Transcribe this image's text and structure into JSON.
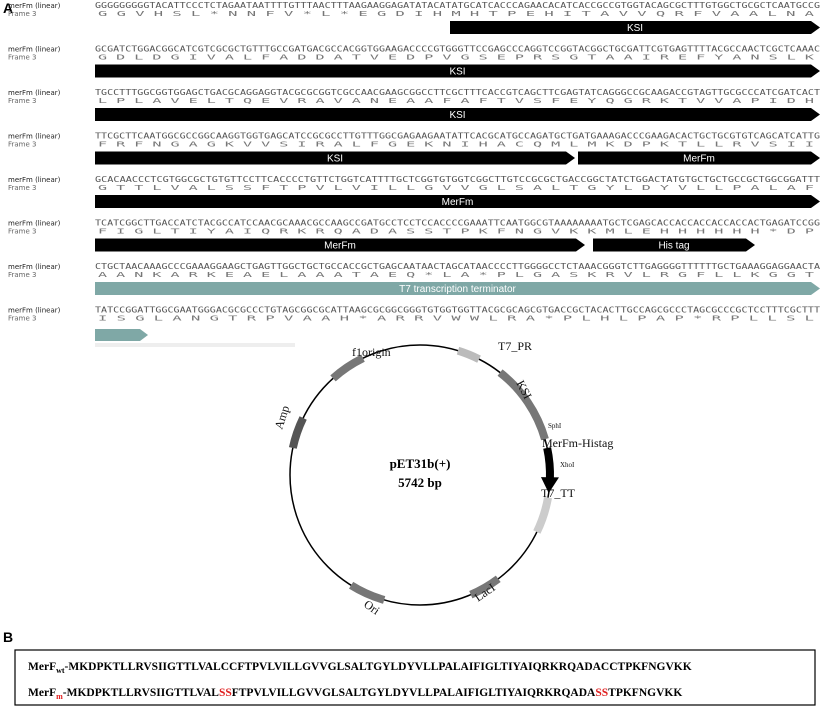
{
  "panel_a": {
    "label": "A",
    "rows": [
      {
        "name": "merFm (linear)",
        "frame": "Frame 3",
        "dna": "GGGGGGGGGTACATTCCCTCTAGAATAATTTTGTTTAACTTTAAGAAGGAGATATACATATGCATCACCCAGAACACATCACCGCCGTGGTACAGCGCTTTGTGGCTGCGCTCAATGCCG",
        "protein": "G G V H S L * N N F V * L * E G D I H M H T P E H I T A V V Q R F V A A L N A",
        "features": [
          {
            "label": "KSI",
            "color": "#000000"
          }
        ]
      },
      {
        "name": "merFm (linear)",
        "frame": "Frame 3",
        "dna": "GCGATCTGGACGGCATCGTCGCGCTGTTTGCCGATGACGCCACGGTGGAAGACCCCGTGGGTTCCGAGCCCAGGTCCGGTACGGCTGCGATTCGTGAGTTTTACGCCAACTCGCTCAAAC",
        "protein": "G D L D G I V A L F A D D A T V E D P V G S E P R S G T A A I R E F Y A N S L K",
        "features": [
          {
            "label": "KSI",
            "color": "#000000"
          }
        ]
      },
      {
        "name": "merFm (linear)",
        "frame": "Frame 3",
        "dna": "TGCCTTTGGCGGTGGAGCTGACGCAGGAGGTACGCGCGGTCGCCAACGAAGCGGCCTTCGCTTTCACCGTCAGCTTCGAGTATCAGGGCCGCAAGACCGTAGTTGCGCCCATCGATCACT",
        "protein": "L P L A V E L T Q E V R A V A N E A A F A F T V S F E Y Q G R K T V V A P I D H",
        "features": [
          {
            "label": "KSI",
            "color": "#000000"
          }
        ]
      },
      {
        "name": "merFm (linear)",
        "frame": "Frame 3",
        "dna": "TTCGCTTCAATGGCGCCGGCAAGGTGGTGAGCATCCGCGCCTTGTTTGGCGAGAAGAATATTCACGCATGCCAGATGCTGATGAAAGACCCGAAGACACTGCTGCGTGTCAGCATCATTG",
        "protein": "F R F N G A G K V V S I R A L F G E K N I H A C Q M L M K D P K T L L R V S I I",
        "features": [
          {
            "label": "KSI",
            "color": "#000000"
          },
          {
            "label": "MerFm",
            "color": "#000000"
          }
        ]
      },
      {
        "name": "merFm (linear)",
        "frame": "Frame 3",
        "dna": "GCACAACCCTCGTGGCGCTGTGTTCCTTCACCCCTGTTCTGGTCATTTTGCTCGGTGTGGTCGGCTTGTCCGCGCTGACCGGCTATCTGGACTATGTGCTGCTGCCGCTGGCGGATTT",
        "protein": "G T T L V A L S S F T P V L V I L L G V V G L S A L T G Y L D Y V L L P A L A F",
        "features": [
          {
            "label": "MerFm",
            "color": "#000000"
          }
        ]
      },
      {
        "name": "merFm (linear)",
        "frame": "Frame 3",
        "dna": "TCATCGGCTTGACCATCTACGCCATCCAACGCAAACGCCAAGCCGATGCCTCCTCCACCCCGAAATTCAATGGCGTAAAAAAAATGCTCGAGCACCACCACCACCACCACTGAGATCCGG",
        "protein": "F I G L T I Y A I Q R K R Q A D A S S T P K F N G V K K M L E H H H H H H * D P",
        "features": [
          {
            "label": "MerFm",
            "color": "#000000"
          },
          {
            "label": "His tag",
            "color": "#000000"
          }
        ]
      },
      {
        "name": "merFm (linear)",
        "frame": "Frame 3",
        "dna": "CTGCTAACAAAGCCCGAAAGGAAGCTGAGTTGGCTGCTGCCACCGCTGAGCAATAACTAGCATAACCCCTTGGGGCCTCTAAACGGGTCTTGAGGGGTTTTTTGCTGAAAGGAGGAACTA",
        "protein": "A A N K A R K E A E L A A A T A E Q * L A * P L G A S K R V L R G F L L K G G T",
        "features": [
          {
            "label": "T7 transcription terminator",
            "color": "#7fa8a6"
          }
        ]
      },
      {
        "name": "merFm (linear)",
        "frame": "Frame 3",
        "dna": "TATCCGGATTGGCGAATGGGACGCGCCCTGTAGCGGCGCATTAAGCGCGGCGGGTGTGGTGGTTACGCGCAGCGTGACCGCTACACTTGCCAGCGCCCTAGCGCCCGCTCCTTTCGCTTT",
        "protein": "I S G L A N G T R P V A A H * A R R V W W L R A * P L H L P A P * R P L L S L",
        "features": []
      }
    ],
    "plasmid": {
      "name": "pET31b(+)",
      "size": "5742 bp",
      "labels": [
        "f1origin",
        "T7_PR",
        "KSI",
        "SphI",
        "MerFm-Histag",
        "XhoI",
        "T7_TT",
        "LacI",
        "Ori",
        "Amp"
      ]
    }
  },
  "panel_b": {
    "label": "B",
    "lines": [
      {
        "name": "MerF",
        "sub": {
          "text": "wt",
          "color": "#000000"
        },
        "segments": [
          {
            "text": "-MKDPKTLLRVSIIGTTLVALCCFTPVLVILLGVVGLSALTGYLDYVLLPALAIFIGLTIYAIQRKRQADACCTPKFNGVKK",
            "color": "#000000"
          }
        ]
      },
      {
        "name": "MerF",
        "sub": {
          "text": "m",
          "color": "#e02020"
        },
        "segments": [
          {
            "text": "-MKDPKTLLRVSIIGTTLVAL",
            "color": "#000000"
          },
          {
            "text": "SS",
            "color": "#e02020"
          },
          {
            "text": "FTPVLVILLGVVGLSALTGYLDYVLLPALAIFIGLTIYAIQRKRQADA",
            "color": "#000000"
          },
          {
            "text": "SS",
            "color": "#e02020"
          },
          {
            "text": "TPKFNGVKK",
            "color": "#000000"
          }
        ]
      }
    ]
  }
}
